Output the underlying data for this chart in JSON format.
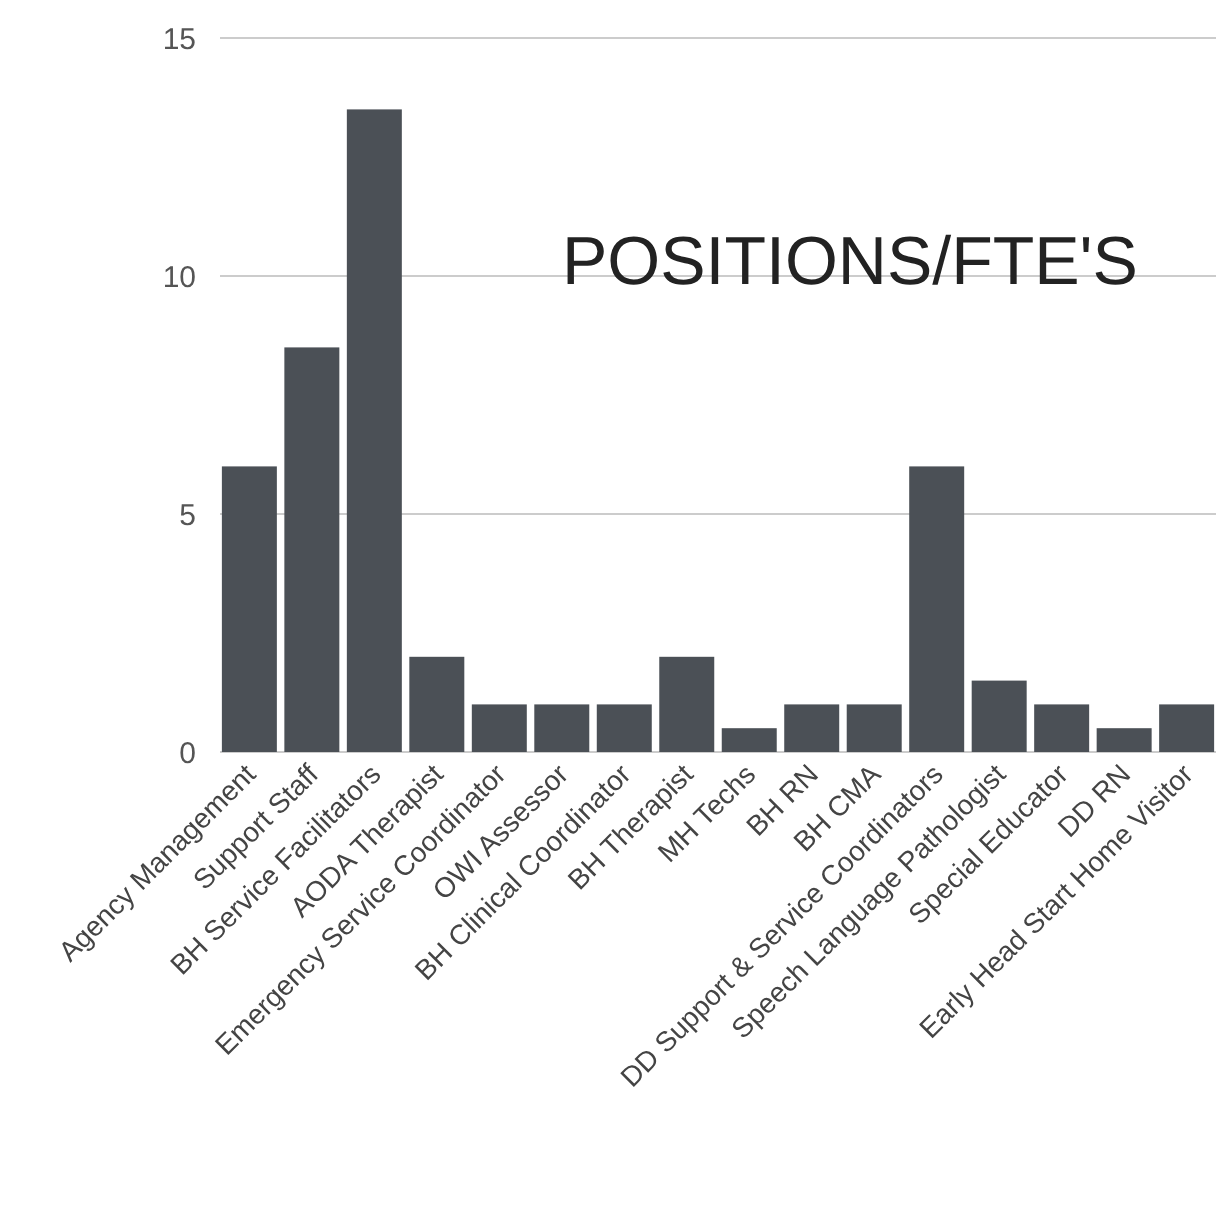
{
  "chart_data": {
    "type": "bar",
    "title": "POSITIONS/FTE'S",
    "categories": [
      "Agency Management",
      "Support Staff",
      "BH Service Facilitators",
      "AODA Therapist",
      "Emergency Service Coordinator",
      "OWI Assessor",
      "BH Clinical Coordinator",
      "BH Therapist",
      "MH Techs",
      "BH RN",
      "BH CMA",
      "DD Support & Service Coordinators",
      "Speech Language Pathologist",
      "Special Educator",
      "DD RN",
      "Early Head Start Home Visitor"
    ],
    "values": [
      6,
      8.5,
      13.5,
      2,
      1,
      1,
      1,
      2,
      0.5,
      1,
      1,
      6,
      1.5,
      1,
      0.5,
      1
    ],
    "color": "#4b5056",
    "ylim": [
      0,
      15
    ],
    "yticks": [
      0,
      5,
      10,
      15
    ],
    "grid": "y"
  }
}
